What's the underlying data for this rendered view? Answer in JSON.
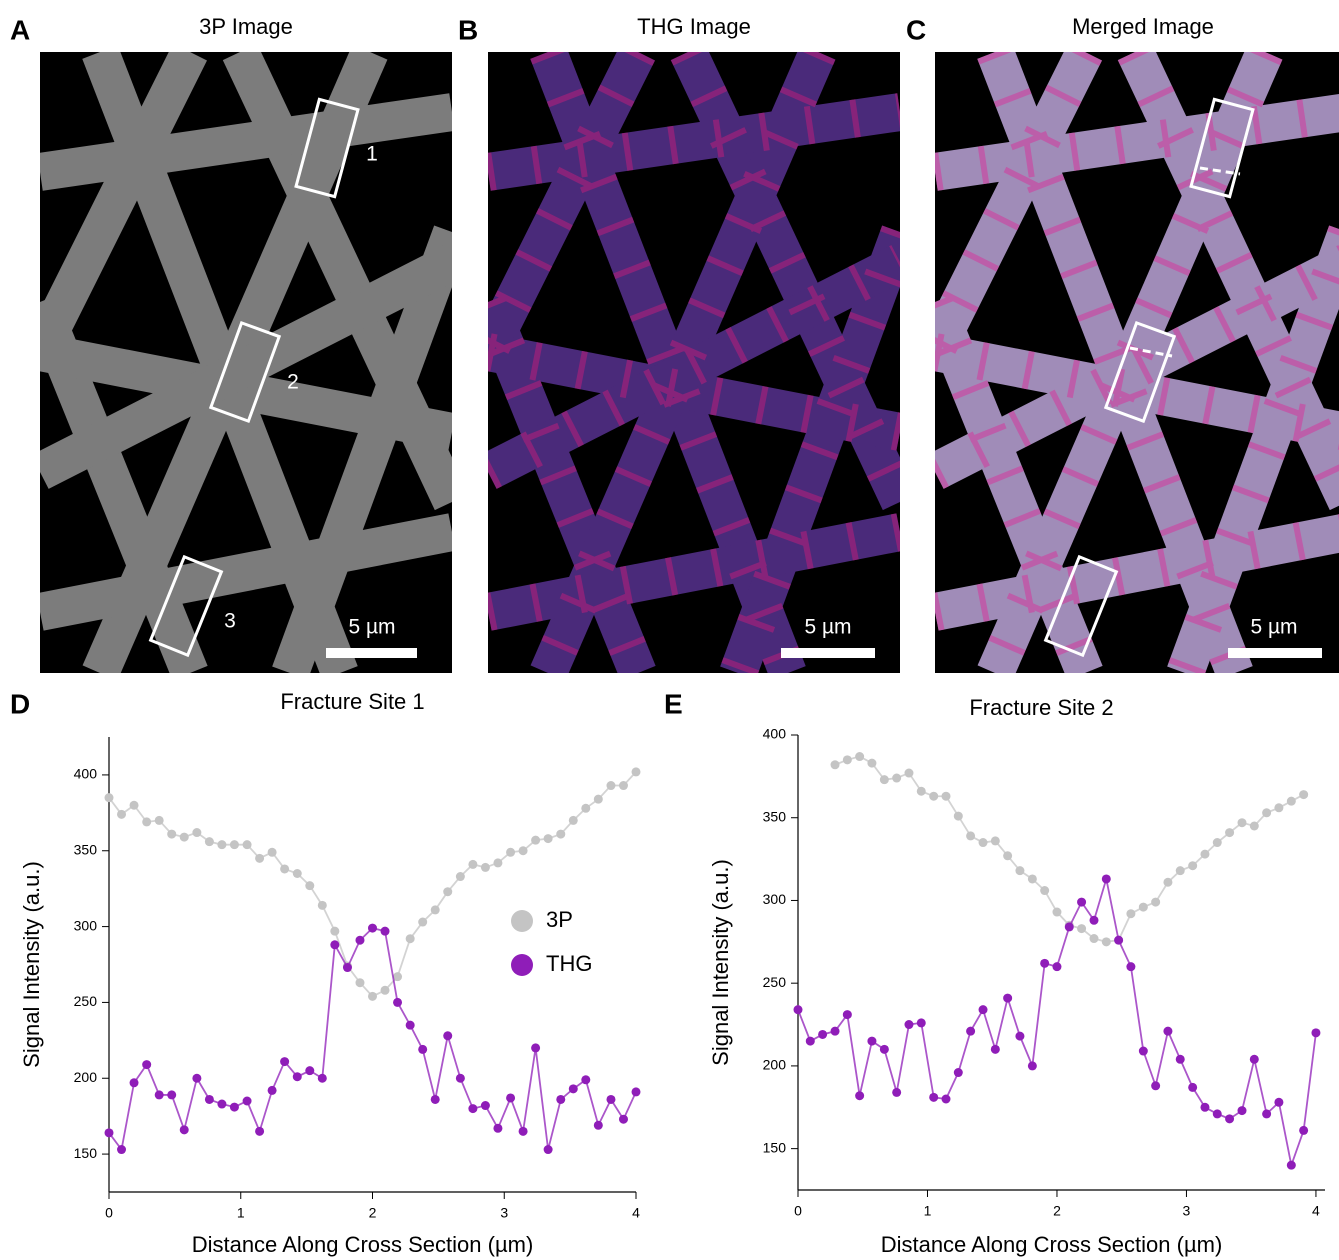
{
  "panels": [
    {
      "letter": "A",
      "title": "3P Image",
      "scale_bar": "5 µm",
      "box_labels": [
        "1",
        "2",
        "3"
      ]
    },
    {
      "letter": "B",
      "title": "THG Image",
      "scale_bar": "5 µm"
    },
    {
      "letter": "C",
      "title": "Merged Image",
      "scale_bar": "5 µm"
    }
  ],
  "chart_data": [
    {
      "type": "line",
      "panel_label": "D",
      "title": "Fracture Site 1",
      "x_label": "Distance Along Cross Section (µm)",
      "y_label": "Signal Intensity (a.u.)",
      "x": [
        0,
        0.095,
        0.19,
        0.286,
        0.381,
        0.476,
        0.571,
        0.667,
        0.762,
        0.857,
        0.952,
        1.048,
        1.143,
        1.238,
        1.333,
        1.429,
        1.524,
        1.619,
        1.714,
        1.81,
        1.905,
        2,
        2.095,
        2.19,
        2.286,
        2.381,
        2.476,
        2.571,
        2.667,
        2.762,
        2.857,
        2.952,
        3.048,
        3.143,
        3.238,
        3.333,
        3.429,
        3.524,
        3.619,
        3.714,
        3.81,
        3.905,
        4
      ],
      "series": [
        {
          "name": "3P",
          "color": "#c4c4c4",
          "values": [
            385,
            374,
            380,
            369,
            370,
            361,
            359,
            362,
            356,
            354,
            354,
            354,
            345,
            349,
            338,
            335,
            327,
            314,
            297,
            274,
            263,
            254,
            258,
            267,
            292,
            303,
            311,
            323,
            333,
            341,
            339,
            342,
            349,
            350,
            357,
            358,
            361,
            370,
            378,
            384,
            393,
            393,
            402
          ]
        },
        {
          "name": "THG",
          "color": "#8f1db8",
          "values": [
            164,
            153,
            197,
            209,
            189,
            189,
            166,
            200,
            186,
            183,
            181,
            185,
            165,
            192,
            211,
            201,
            205,
            200,
            288,
            273,
            291,
            299,
            297,
            250,
            235,
            219,
            186,
            228,
            200,
            180,
            182,
            167,
            187,
            165,
            220,
            153,
            186,
            193,
            199,
            169,
            186,
            173,
            191
          ]
        }
      ],
      "xlim": [
        0,
        4
      ],
      "ylim": [
        125,
        425
      ],
      "xticks": [
        0,
        1,
        2,
        3,
        4
      ],
      "yticks": [
        150,
        200,
        250,
        300,
        350,
        400
      ],
      "legend": "center right"
    },
    {
      "type": "line",
      "panel_label": "E",
      "title": "Fracture Site 2",
      "x_label": "Distance Along Cross Section (µm)",
      "y_label": "Signal Intensity (a.u.)",
      "x": [
        0,
        0.095,
        0.19,
        0.286,
        0.381,
        0.476,
        0.571,
        0.667,
        0.762,
        0.857,
        0.952,
        1.048,
        1.143,
        1.238,
        1.333,
        1.429,
        1.524,
        1.619,
        1.714,
        1.81,
        1.905,
        2,
        2.095,
        2.19,
        2.286,
        2.381,
        2.476,
        2.571,
        2.667,
        2.762,
        2.857,
        2.952,
        3.048,
        3.143,
        3.238,
        3.333,
        3.429,
        3.524,
        3.619,
        3.714,
        3.81,
        3.905,
        4
      ],
      "series": [
        {
          "name": "3P",
          "color": "#c4c4c4",
          "values": [
            null,
            null,
            null,
            382,
            385,
            387,
            383,
            373,
            374,
            377,
            366,
            363,
            363,
            351,
            339,
            335,
            336,
            327,
            318,
            313,
            306,
            293,
            285,
            283,
            277,
            275,
            276,
            292,
            296,
            299,
            311,
            318,
            321,
            328,
            335,
            341,
            347,
            345,
            353,
            356,
            360,
            364,
            null
          ]
        },
        {
          "name": "THG",
          "color": "#8f1db8",
          "values": [
            234,
            215,
            219,
            221,
            231,
            182,
            215,
            210,
            184,
            225,
            226,
            181,
            180,
            196,
            221,
            234,
            210,
            241,
            218,
            200,
            262,
            260,
            284,
            299,
            288,
            313,
            276,
            260,
            209,
            188,
            221,
            204,
            187,
            175,
            171,
            168,
            173,
            204,
            171,
            178,
            140,
            161,
            220
          ]
        }
      ],
      "xlim": [
        0,
        4.07
      ],
      "ylim": [
        125,
        400
      ],
      "xticks": [
        0,
        1,
        2,
        3,
        4
      ],
      "yticks": [
        150,
        200,
        250,
        300,
        350,
        400
      ]
    }
  ]
}
